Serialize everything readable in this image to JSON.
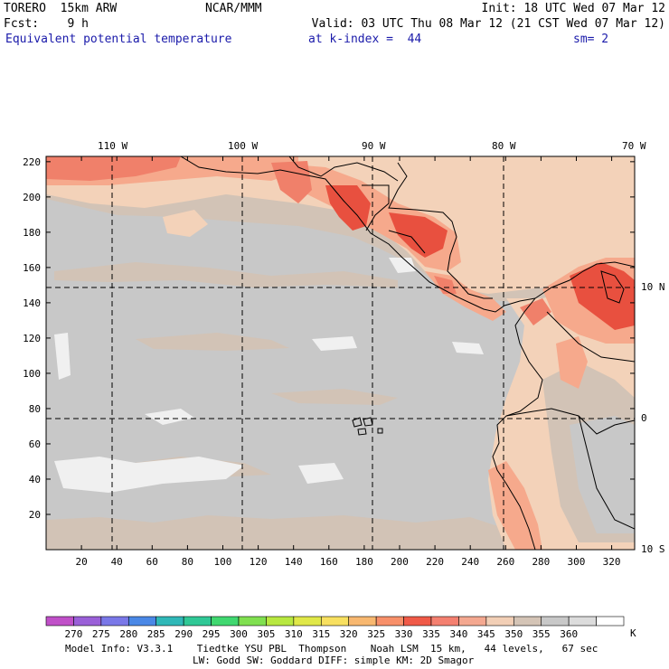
{
  "header": {
    "model_name": "TORERO  15km ARW",
    "org": "NCAR/MMM",
    "init": "Init: 18 UTC Wed 07 Mar 12",
    "fcst": "Fcst:    9 h",
    "valid": "Valid: 03 UTC Thu 08 Mar 12 (21 CST Wed 07 Mar 12)",
    "field": "Equivalent potential temperature",
    "level": "at k-index =  44",
    "smoothing": "sm= 2"
  },
  "map": {
    "top_lon_labels": [
      "110 W",
      "100 W",
      "90 W",
      "80 W",
      "70 W"
    ],
    "right_lat_labels": [
      "10 N",
      "0",
      "10 S"
    ],
    "y_tick_labels": [
      "20",
      "40",
      "60",
      "80",
      "100",
      "120",
      "140",
      "160",
      "180",
      "200",
      "220"
    ],
    "x_tick_labels": [
      "20",
      "40",
      "60",
      "80",
      "100",
      "120",
      "140",
      "160",
      "180",
      "200",
      "220",
      "240",
      "260",
      "280",
      "300",
      "320"
    ],
    "colors": {
      "ocean": "#c8c8c8",
      "warm_band": "#d2c3b6",
      "pale": "#f3d2b9",
      "orange": "#f6a98c",
      "red_orange": "#f0806a",
      "red": "#e8503f",
      "white_patch": "#f0f0f0"
    }
  },
  "colorbar": {
    "labels": [
      "270",
      "275",
      "280",
      "285",
      "290",
      "295",
      "300",
      "305",
      "310",
      "315",
      "320",
      "325",
      "330",
      "335",
      "340",
      "345",
      "350",
      "355",
      "360"
    ],
    "unit": "K",
    "colors": [
      "#c050c8",
      "#9a60d8",
      "#7a78e8",
      "#4a88e6",
      "#30b8b8",
      "#30c896",
      "#40d870",
      "#80e050",
      "#b8e840",
      "#e0e848",
      "#f8e060",
      "#f8b870",
      "#f8906a",
      "#f05a48",
      "#f48070",
      "#f4a890",
      "#f2cfb6",
      "#d4c4b6",
      "#c8c8c8",
      "#dcdcdc",
      "#ffffff"
    ]
  },
  "footer": {
    "line1": "Model Info: V3.3.1    Tiedtke YSU PBL  Thompson    Noah LSM  15 km,   44 levels,   67 sec",
    "line2": "LW: Godd SW: Goddard DIFF: simple KM: 2D Smagor"
  }
}
